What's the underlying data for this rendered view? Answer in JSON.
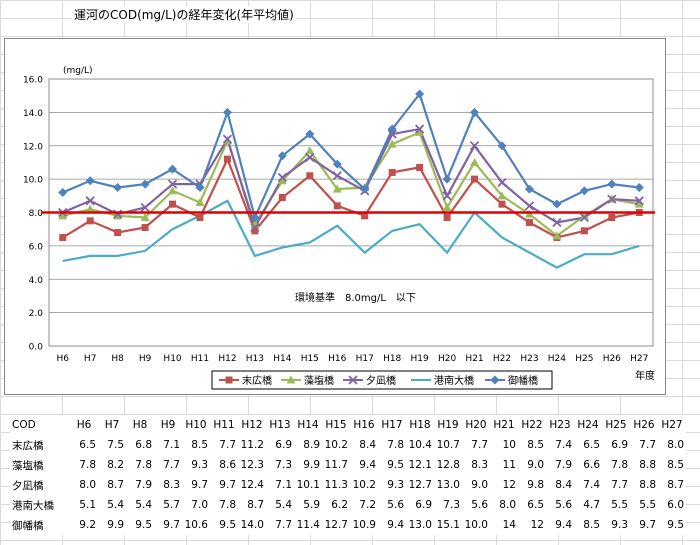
{
  "title": "運河のCOD(mg/L)の経年変化(年平均値)",
  "chart_data": {
    "type": "line",
    "title": "",
    "ylabel": "(mg/L)",
    "xlabel": "年度",
    "ylim": [
      0,
      16
    ],
    "yticks": [
      "0.0",
      "2.0",
      "4.0",
      "6.0",
      "8.0",
      "10.0",
      "12.0",
      "14.0",
      "16.0"
    ],
    "categories": [
      "H6",
      "H7",
      "H8",
      "H9",
      "H10",
      "H11",
      "H12",
      "H13",
      "H14",
      "H15",
      "H16",
      "H17",
      "H18",
      "H19",
      "H20",
      "H21",
      "H22",
      "H23",
      "H24",
      "H25",
      "H26",
      "H27"
    ],
    "grid": true,
    "legend_position": "bottom",
    "reference": {
      "value": 8.0,
      "label": "環境基準　8.0mg/L　以下",
      "color": "#e00000"
    },
    "series": [
      {
        "name": "末広橋",
        "color": "#c0504d",
        "marker": "square",
        "values": [
          6.5,
          7.5,
          6.8,
          7.1,
          8.5,
          7.7,
          11.2,
          6.9,
          8.9,
          10.2,
          8.4,
          7.8,
          10.4,
          10.7,
          7.7,
          10,
          8.5,
          7.4,
          6.5,
          6.9,
          7.7,
          8.0
        ]
      },
      {
        "name": "藻塩橋",
        "color": "#9bbb59",
        "marker": "triangle",
        "values": [
          7.8,
          8.2,
          7.8,
          7.7,
          9.3,
          8.6,
          12.3,
          7.3,
          9.9,
          11.7,
          9.4,
          9.5,
          12.1,
          12.8,
          8.3,
          11,
          9.0,
          7.9,
          6.6,
          7.8,
          8.8,
          8.5
        ]
      },
      {
        "name": "夕凪橋",
        "color": "#8064a2",
        "marker": "cross",
        "values": [
          8.0,
          8.7,
          7.9,
          8.3,
          9.7,
          9.7,
          12.4,
          7.1,
          10.1,
          11.3,
          10.2,
          9.3,
          12.7,
          13.0,
          9.0,
          12,
          9.8,
          8.4,
          7.4,
          7.7,
          8.8,
          8.7
        ]
      },
      {
        "name": "港南大橋",
        "color": "#4bacc6",
        "marker": "none",
        "values": [
          5.1,
          5.4,
          5.4,
          5.7,
          7.0,
          7.8,
          8.7,
          5.4,
          5.9,
          6.2,
          7.2,
          5.6,
          6.9,
          7.3,
          5.6,
          8.0,
          6.5,
          5.6,
          4.7,
          5.5,
          5.5,
          6.0
        ]
      },
      {
        "name": "御幡橋",
        "color": "#4f81bd",
        "marker": "diamond",
        "values": [
          9.2,
          9.9,
          9.5,
          9.7,
          10.6,
          9.5,
          14.0,
          7.7,
          11.4,
          12.7,
          10.9,
          9.4,
          13.0,
          15.1,
          10.0,
          14,
          12,
          9.4,
          8.5,
          9.3,
          9.7,
          9.5
        ]
      }
    ]
  },
  "table": {
    "corner": "COD",
    "headers": [
      "H6",
      "H7",
      "H8",
      "H9",
      "H10",
      "H11",
      "H12",
      "H13",
      "H14",
      "H15",
      "H16",
      "H17",
      "H18",
      "H19",
      "H20",
      "H21",
      "H22",
      "H23",
      "H24",
      "H25",
      "H26",
      "H27"
    ],
    "rows": [
      {
        "label": "末広橋",
        "cells": [
          "6.5",
          "7.5",
          "6.8",
          "7.1",
          "8.5",
          "7.7",
          "11.2",
          "6.9",
          "8.9",
          "10.2",
          "8.4",
          "7.8",
          "10.4",
          "10.7",
          "7.7",
          "10",
          "8.5",
          "7.4",
          "6.5",
          "6.9",
          "7.7",
          "8.0"
        ]
      },
      {
        "label": "藻塩橋",
        "cells": [
          "7.8",
          "8.2",
          "7.8",
          "7.7",
          "9.3",
          "8.6",
          "12.3",
          "7.3",
          "9.9",
          "11.7",
          "9.4",
          "9.5",
          "12.1",
          "12.8",
          "8.3",
          "11",
          "9.0",
          "7.9",
          "6.6",
          "7.8",
          "8.8",
          "8.5"
        ]
      },
      {
        "label": "夕凪橋",
        "cells": [
          "8.0",
          "8.7",
          "7.9",
          "8.3",
          "9.7",
          "9.7",
          "12.4",
          "7.1",
          "10.1",
          "11.3",
          "10.2",
          "9.3",
          "12.7",
          "13.0",
          "9.0",
          "12",
          "9.8",
          "8.4",
          "7.4",
          "7.7",
          "8.8",
          "8.7"
        ]
      },
      {
        "label": "港南大橋",
        "cells": [
          "5.1",
          "5.4",
          "5.4",
          "5.7",
          "7.0",
          "7.8",
          "8.7",
          "5.4",
          "5.9",
          "6.2",
          "7.2",
          "5.6",
          "6.9",
          "7.3",
          "5.6",
          "8.0",
          "6.5",
          "5.6",
          "4.7",
          "5.5",
          "5.5",
          "6.0"
        ]
      },
      {
        "label": "御幡橋",
        "cells": [
          "9.2",
          "9.9",
          "9.5",
          "9.7",
          "10.6",
          "9.5",
          "14.0",
          "7.7",
          "11.4",
          "12.7",
          "10.9",
          "9.4",
          "13.0",
          "15.1",
          "10.0",
          "14",
          "12",
          "9.4",
          "8.5",
          "9.3",
          "9.7",
          "9.5"
        ]
      }
    ]
  }
}
